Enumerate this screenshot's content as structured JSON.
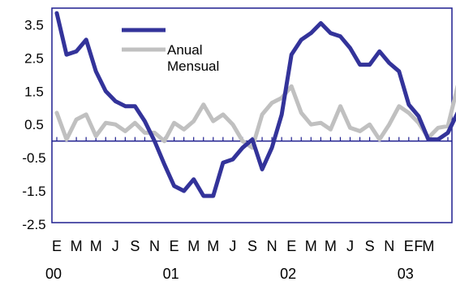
{
  "chart_data": {
    "type": "line",
    "title": "",
    "xlabel": "",
    "ylabel": "",
    "ylim": [
      -2.5,
      4.0
    ],
    "yticks": [
      "3.5",
      "2.5",
      "1.5",
      "0.5",
      "-0.5",
      "-1.5",
      "-2.5"
    ],
    "ytick_values": [
      3.5,
      2.5,
      1.5,
      0.5,
      -0.5,
      -1.5,
      -2.5
    ],
    "month_labels": [
      "E",
      "M",
      "M",
      "J",
      "S",
      "N",
      "E",
      "M",
      "M",
      "J",
      "S",
      "N",
      "E",
      "M",
      "M",
      "J",
      "S",
      "N",
      "E",
      "F",
      "M"
    ],
    "month_label_index": [
      0,
      2,
      4,
      6,
      8,
      10,
      12,
      14,
      16,
      18,
      20,
      22,
      24,
      26,
      28,
      30,
      32,
      34,
      36,
      37,
      38
    ],
    "year_labels": [
      "00",
      "01",
      "02",
      "03"
    ],
    "year_label_index": [
      0,
      12,
      24,
      36
    ],
    "grid": false,
    "legend_position": "top-left",
    "zero_line": true,
    "series": [
      {
        "name": "Anual",
        "color": "#33339a",
        "values": [
          3.85,
          2.6,
          2.7,
          3.05,
          2.1,
          1.5,
          1.2,
          1.05,
          1.05,
          0.6,
          0.0,
          -0.7,
          -1.35,
          -1.5,
          -1.15,
          -1.65,
          -1.65,
          -0.65,
          -0.55,
          -0.2,
          0.05,
          -0.85,
          -0.2,
          0.8,
          2.6,
          3.05,
          3.25,
          3.55,
          3.25,
          3.15,
          2.8,
          2.3,
          2.3,
          2.7,
          2.35,
          2.1,
          1.1,
          0.75,
          0.05,
          0.05,
          0.25,
          0.85
        ]
      },
      {
        "name": "Mensual",
        "color": "#c0c0c0",
        "values": [
          0.85,
          0.05,
          0.65,
          0.8,
          0.15,
          0.55,
          0.5,
          0.3,
          0.55,
          0.25,
          0.25,
          0.0,
          0.55,
          0.35,
          0.6,
          1.1,
          0.6,
          0.8,
          0.5,
          0.0,
          -0.2,
          0.8,
          1.15,
          1.3,
          1.65,
          0.85,
          0.5,
          0.55,
          0.35,
          1.05,
          0.4,
          0.3,
          0.5,
          0.05,
          0.5,
          1.05,
          0.85,
          0.55,
          0.1,
          0.4,
          0.45,
          1.65
        ]
      }
    ]
  }
}
